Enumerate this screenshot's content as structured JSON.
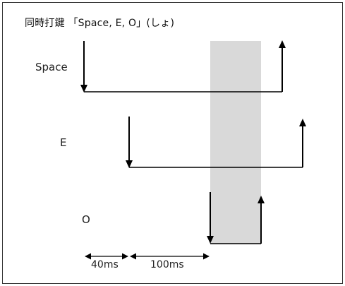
{
  "title": "同時打鍵 「Space, E, O」(しょ)",
  "keys": [
    {
      "label": "Space"
    },
    {
      "label": "E"
    },
    {
      "label": "O"
    }
  ],
  "intervals": [
    {
      "label": "40ms"
    },
    {
      "label": "100ms"
    }
  ],
  "colors": {
    "line": "#000000",
    "overlap_region": "#d9d9d9",
    "frame": "#333333"
  }
}
